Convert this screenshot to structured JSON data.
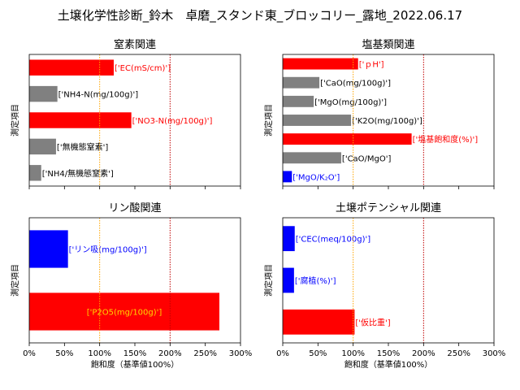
{
  "suptitle": "土壌化学性診断_鈴木　卓磨_スタンド東_ブロッコリー_露地_2022.06.17",
  "colors": {
    "red": "#ff0000",
    "gray": "#808080",
    "blue": "#0000ff",
    "ref100": "#ffa500",
    "ref200": "#c00000"
  },
  "chart_data": [
    {
      "type": "bar",
      "title": "窒素関連",
      "ylabel": "測定項目",
      "xlabel": "",
      "xlim": [
        0,
        300
      ],
      "xticks_visible": false,
      "reference_lines": [
        100,
        200
      ],
      "bars": [
        {
          "label": "['EC(mS/cm)']",
          "value": 120,
          "color": "red",
          "label_color": "red",
          "label_inside": false
        },
        {
          "label": "['NH4-N(mg/100g)']",
          "value": 40,
          "color": "gray",
          "label_color": "black",
          "label_inside": false
        },
        {
          "label": "['NO3-N(mg/100g)']",
          "value": 145,
          "color": "red",
          "label_color": "red",
          "label_inside": false
        },
        {
          "label": "['無機態窒素']",
          "value": 38,
          "color": "gray",
          "label_color": "black",
          "label_inside": false
        },
        {
          "label": "['NH4/無機態窒素']",
          "value": 17,
          "color": "gray",
          "label_color": "black",
          "label_inside": false
        }
      ]
    },
    {
      "type": "bar",
      "title": "塩基類関連",
      "ylabel": "測定項目",
      "xlabel": "",
      "xlim": [
        0,
        300
      ],
      "xticks_visible": false,
      "reference_lines": [
        100,
        200
      ],
      "bars": [
        {
          "label": "['ｐH']",
          "value": 107,
          "color": "red",
          "label_color": "red",
          "label_inside": false
        },
        {
          "label": "['CaO(mg/100g)']",
          "value": 52,
          "color": "gray",
          "label_color": "black",
          "label_inside": false
        },
        {
          "label": "['MgO(mg/100g)']",
          "value": 44,
          "color": "gray",
          "label_color": "black",
          "label_inside": false
        },
        {
          "label": "['K2O(mg/100g)']",
          "value": 97,
          "color": "gray",
          "label_color": "black",
          "label_inside": false
        },
        {
          "label": "['塩基飽和度(%)']",
          "value": 183,
          "color": "red",
          "label_color": "red",
          "label_inside": false
        },
        {
          "label": "['CaO/MgO']",
          "value": 83,
          "color": "gray",
          "label_color": "black",
          "label_inside": false
        },
        {
          "label": "['MgO/K₂O']",
          "value": 13,
          "color": "blue",
          "label_color": "blue",
          "label_inside": false
        }
      ]
    },
    {
      "type": "bar",
      "title": "リン酸関連",
      "ylabel": "測定項目",
      "xlabel": "飽和度（基準値100%）",
      "xlim": [
        0,
        300
      ],
      "xticks_visible": true,
      "reference_lines": [
        100,
        200
      ],
      "bars": [
        {
          "label": "['リン吸(mg/100g)']",
          "value": 55,
          "color": "blue",
          "label_color": "blue",
          "label_inside": false
        },
        {
          "label": "['P2O5(mg/100g)']",
          "value": 270,
          "color": "red",
          "label_color": "yellow",
          "label_inside": true
        }
      ]
    },
    {
      "type": "bar",
      "title": "土壌ポテンシャル関連",
      "ylabel": "測定項目",
      "xlabel": "飽和度（基準値100%）",
      "xlim": [
        0,
        300
      ],
      "xticks_visible": true,
      "reference_lines": [
        100,
        200
      ],
      "bars": [
        {
          "label": "['CEC(meq/100g)']",
          "value": 17,
          "color": "blue",
          "label_color": "blue",
          "label_inside": false
        },
        {
          "label": "['腐植(%)']",
          "value": 16,
          "color": "blue",
          "label_color": "blue",
          "label_inside": false
        },
        {
          "label": "['仮比重']",
          "value": 102,
          "color": "red",
          "label_color": "red",
          "label_inside": false
        }
      ]
    }
  ],
  "xticks": [
    "0%",
    "50%",
    "100%",
    "150%",
    "200%",
    "250%",
    "300%"
  ]
}
